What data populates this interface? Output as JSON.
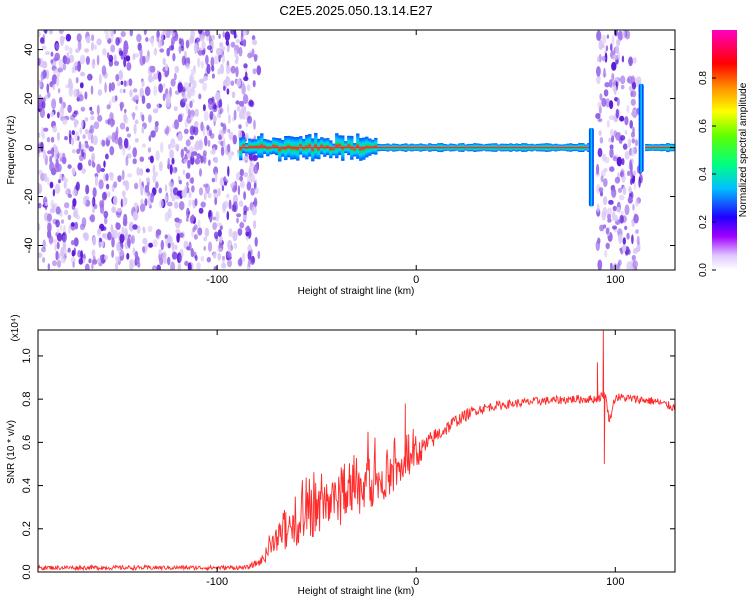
{
  "title": "C2E5.2025.050.13.14.E27",
  "colors": {
    "frame": "#000000",
    "snr_line": "#ff2a2a",
    "speckle_light": "#d9c6f5",
    "speckle_mid": "#9b6ae8",
    "speckle_dark": "#5a18d8",
    "ridge_core": "#ff2a2a",
    "ridge_mid": "#00e080",
    "ridge_edge": "#0050ff"
  },
  "chart_data": [
    {
      "type": "heatmap",
      "title": "C2E5.2025.050.13.14.E27",
      "xlabel": "Height of straight line (km)",
      "ylabel": "Frequency (Hz)",
      "xlim": [
        -190,
        130
      ],
      "ylim": [
        -50,
        48
      ],
      "xticks": [
        -100,
        0,
        100
      ],
      "xtick_labels": [
        "-100",
        "0",
        "100"
      ],
      "yticks": [
        -40,
        -20,
        0,
        20,
        40
      ],
      "ytick_labels": [
        "-40",
        "-20",
        "0",
        "20",
        "40"
      ],
      "colorbar": {
        "label": "Normalized spectral amplitude",
        "range": [
          0,
          1
        ],
        "ticks": [
          0,
          0.2,
          0.4,
          0.6,
          0.8
        ],
        "tick_labels": [
          "0.0",
          "0.2",
          "0.4",
          "0.6",
          "0.8"
        ],
        "stops": [
          "#ffffff",
          "#a000ff",
          "#0000ff",
          "#00ffff",
          "#00ff00",
          "#ffff00",
          "#ff8000",
          "#ff0000",
          "#ff00b0"
        ]
      },
      "regions": [
        {
          "kind": "noise",
          "x_from": -190,
          "x_to": -79
        },
        {
          "kind": "ridge",
          "x_from": -89,
          "x_to": 87,
          "freq": 0
        },
        {
          "kind": "noise",
          "x_from": 91,
          "x_to": 113
        },
        {
          "kind": "ridge",
          "x_from": 115,
          "x_to": 130,
          "freq": 0
        }
      ],
      "spikes": [
        {
          "x": 88,
          "freq_from": -24,
          "freq_to": 8
        },
        {
          "x": 113,
          "freq_from": -10,
          "freq_to": 26
        }
      ]
    },
    {
      "type": "line",
      "xlabel": "Height of straight line (km)",
      "ylabel": "SNR (10 * v/v)",
      "y_multiplier": "(x10⁴)",
      "xlim": [
        -190,
        130
      ],
      "ylim": [
        0,
        1.12
      ],
      "xticks": [
        -100,
        0,
        100
      ],
      "xtick_labels": [
        "-100",
        "0",
        "100"
      ],
      "yticks": [
        0,
        0.2,
        0.4,
        0.6,
        0.8,
        1.0
      ],
      "ytick_labels": [
        "0.0",
        "0.2",
        "0.4",
        "0.6",
        "0.8",
        "1.0"
      ],
      "x": [
        -190,
        -150,
        -110,
        -85,
        -78,
        -70,
        -60,
        -50,
        -40,
        -30,
        -20,
        -10,
        0,
        10,
        20,
        30,
        40,
        60,
        80,
        90,
        95,
        97,
        100,
        110,
        120,
        130
      ],
      "y": [
        0.02,
        0.02,
        0.02,
        0.02,
        0.05,
        0.15,
        0.2,
        0.27,
        0.32,
        0.38,
        0.41,
        0.46,
        0.54,
        0.63,
        0.7,
        0.75,
        0.77,
        0.79,
        0.8,
        0.8,
        0.82,
        0.7,
        0.81,
        0.8,
        0.79,
        0.76
      ],
      "noise_amplitude": [
        0.01,
        0.01,
        0.01,
        0.01,
        0.02,
        0.06,
        0.08,
        0.1,
        0.12,
        0.12,
        0.1,
        0.08,
        0.06,
        0.04,
        0.03,
        0.025,
        0.02,
        0.02,
        0.02,
        0.02,
        0.02,
        0.02,
        0.02,
        0.02,
        0.02,
        0.02
      ],
      "peaks": [
        {
          "x": -5.5,
          "y": 0.78
        },
        {
          "x": 91,
          "y": 0.97
        },
        {
          "x": 94,
          "y": 1.12
        },
        {
          "x": 94.5,
          "y": 0.5
        }
      ]
    }
  ]
}
